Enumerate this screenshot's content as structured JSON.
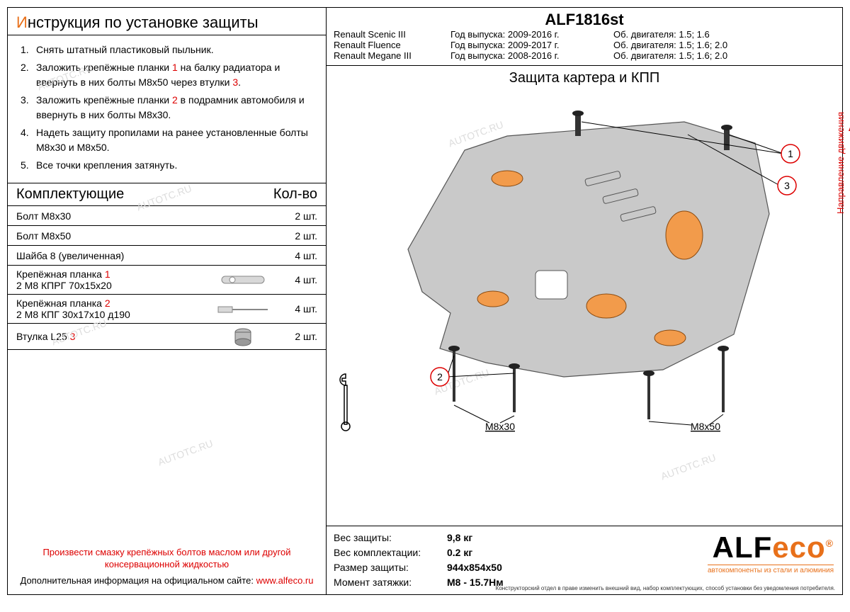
{
  "instructions": {
    "title_prefix": "И",
    "title_rest": "нструкция по установке защиты",
    "items": [
      "Снять штатный пластиковый пыльник.",
      "Заложить крепёжные планки <1> на балку радиатора и ввернуть в них болты М8х50 через втулки <3>.",
      "Заложить крепёжные планки <2> в подрамник автомобиля и ввернуть в них болты М8х30.",
      "Надеть защиту пропилами на ранее установленные болты М8х30 и М8х50.",
      "Все точки крепления затянуть."
    ]
  },
  "components": {
    "header_left": "Комплектующие",
    "header_right": "Кол-во",
    "rows": [
      {
        "label": "Болт М8х30",
        "ref": "",
        "qty": "2 шт.",
        "icon": ""
      },
      {
        "label": "Болт М8х50",
        "ref": "",
        "qty": "2 шт.",
        "icon": ""
      },
      {
        "label": "Шайба 8 (увеличенная)",
        "ref": "",
        "qty": "4 шт.",
        "icon": ""
      },
      {
        "label": "Крепёжная планка",
        "ref": "1",
        "sub": "2 М8 КПРГ 70х15х20",
        "qty": "4 шт.",
        "icon": "bracket1"
      },
      {
        "label": "Крепёжная планка",
        "ref": "2",
        "sub": "2 М8 КПГ 30х17х10 д190",
        "qty": "4 шт.",
        "icon": "bracket2"
      },
      {
        "label": "Втулка L25",
        "ref": "3",
        "qty": "2 шт.",
        "icon": "bushing"
      }
    ]
  },
  "footer": {
    "warning": "Произвести смазку крепёжных болтов маслом или другой консервационной жидкостью",
    "info_text": "Дополнительная информация на официальном сайте: ",
    "link": "www.alfeco.ru"
  },
  "right": {
    "part_number": "ALF1816st",
    "vehicles": [
      {
        "name": "Renault Scenic III",
        "year": "Год выпуска: 2009-2016 г.",
        "eng": "Об. двигателя: 1.5; 1.6"
      },
      {
        "name": "Renault Fluence",
        "year": "Год выпуска: 2009-2017 г.",
        "eng": "Об. двигателя: 1.5; 1.6; 2.0"
      },
      {
        "name": "Renault Megane III",
        "year": "Год выпуска: 2008-2016 г.",
        "eng": "Об. двигателя: 1.5; 1.6; 2.0"
      }
    ],
    "diagram_title": "Защита картера и КПП",
    "direction": "Направление движения",
    "callouts": {
      "c1": "1",
      "c2": "2",
      "c3": "3"
    },
    "bolt_labels": {
      "left": "М8х30",
      "right": "М8х50"
    },
    "specs": [
      {
        "label": "Вес защиты:",
        "value": "9,8 кг"
      },
      {
        "label": "Вес комплектации:",
        "value": "0.2 кг"
      },
      {
        "label": "Размер защиты:",
        "value": "944х854х50"
      },
      {
        "label": "Момент затяжки:",
        "value": "М8 - 15.7Нм"
      }
    ],
    "logo": {
      "main": "ALF",
      "accent": "eco",
      "reg": "®",
      "sub": "автокомпоненты из стали и алюминия"
    },
    "disclaimer": "Конструкторский отдел в праве изменить внешний вид, набор комплектующих, способ установки без уведомления потребителя."
  },
  "watermark_text": "AUTOTC.RU",
  "colors": {
    "accent": "#e8701a",
    "red": "#d00000",
    "plate_fill": "#c9c9c9",
    "plate_stroke": "#555",
    "bushing_fill": "#f29b4b"
  }
}
